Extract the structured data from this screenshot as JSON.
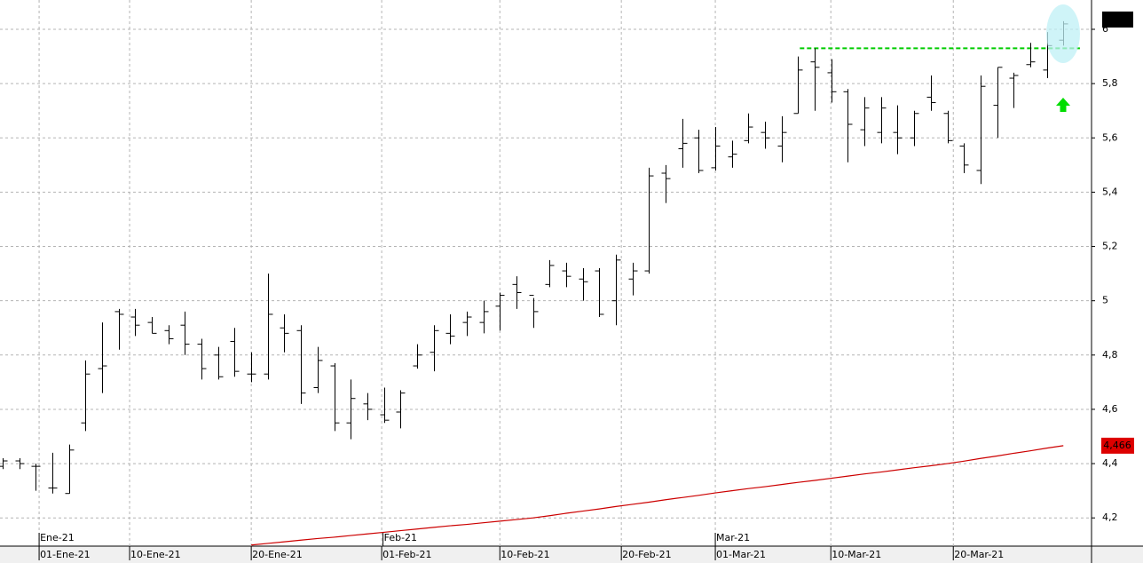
{
  "chart_data": {
    "type": "ohlc",
    "color": "#000000",
    "open": [
      4.39,
      4.41,
      4.39,
      4.31,
      4.29,
      4.55,
      4.75,
      4.96,
      4.94,
      4.92,
      4.89,
      4.91,
      4.84,
      4.8,
      4.85,
      4.73,
      4.73,
      4.9,
      4.89,
      4.68,
      4.76,
      4.55,
      4.62,
      4.58,
      4.59,
      4.76,
      4.81,
      4.88,
      4.92,
      4.92,
      4.98,
      5.06,
      5.02,
      5.06,
      5.11,
      5.08,
      5.11,
      5.0,
      5.08,
      5.11,
      5.47,
      5.56,
      5.6,
      5.49,
      5.53,
      5.59,
      5.62,
      5.57,
      5.69,
      5.88,
      5.84,
      5.77,
      5.63,
      5.62,
      5.62,
      5.6,
      5.75,
      5.69,
      5.57,
      5.48,
      5.72,
      5.82,
      5.87,
      5.85,
      5.96
    ],
    "high": [
      4.42,
      4.42,
      4.4,
      4.44,
      4.47,
      4.78,
      4.92,
      4.97,
      4.97,
      4.94,
      4.91,
      4.96,
      4.86,
      4.83,
      4.9,
      4.81,
      5.1,
      4.95,
      4.91,
      4.83,
      4.77,
      4.71,
      4.66,
      4.68,
      4.67,
      4.84,
      4.91,
      4.95,
      4.96,
      5.0,
      5.03,
      5.09,
      5.01,
      5.15,
      5.14,
      5.12,
      5.12,
      5.17,
      5.14,
      5.49,
      5.5,
      5.67,
      5.63,
      5.64,
      5.59,
      5.69,
      5.66,
      5.68,
      5.9,
      5.93,
      5.89,
      5.78,
      5.75,
      5.75,
      5.72,
      5.7,
      5.83,
      5.7,
      5.58,
      5.83,
      5.86,
      5.84,
      5.95,
      5.99,
      6.03
    ],
    "low": [
      4.38,
      4.38,
      4.3,
      4.29,
      4.29,
      4.52,
      4.66,
      4.82,
      4.87,
      4.88,
      4.84,
      4.8,
      4.71,
      4.71,
      4.72,
      4.7,
      4.71,
      4.81,
      4.62,
      4.66,
      4.52,
      4.49,
      4.56,
      4.55,
      4.53,
      4.75,
      4.74,
      4.84,
      4.87,
      4.88,
      4.89,
      4.97,
      4.9,
      5.05,
      5.05,
      5.0,
      4.94,
      4.91,
      5.02,
      5.1,
      5.36,
      5.49,
      5.47,
      5.48,
      5.49,
      5.58,
      5.56,
      5.51,
      5.69,
      5.7,
      5.73,
      5.51,
      5.57,
      5.58,
      5.54,
      5.57,
      5.7,
      5.58,
      5.47,
      5.43,
      5.6,
      5.71,
      5.86,
      5.82,
      5.94
    ],
    "close": [
      4.41,
      4.4,
      4.39,
      4.31,
      4.45,
      4.73,
      4.76,
      4.95,
      4.91,
      4.88,
      4.86,
      4.84,
      4.75,
      4.72,
      4.74,
      4.73,
      4.95,
      4.88,
      4.66,
      4.78,
      4.55,
      4.64,
      4.6,
      4.56,
      4.66,
      4.8,
      4.89,
      4.87,
      4.94,
      4.96,
      5.02,
      5.03,
      4.96,
      5.13,
      5.09,
      5.07,
      4.95,
      5.15,
      5.11,
      5.46,
      5.45,
      5.58,
      5.48,
      5.57,
      5.54,
      5.64,
      5.6,
      5.62,
      5.85,
      5.86,
      5.77,
      5.65,
      5.71,
      5.71,
      5.6,
      5.69,
      5.73,
      5.59,
      5.5,
      5.79,
      5.86,
      5.83,
      5.88,
      5.94,
      6.02
    ],
    "moving_average": {
      "color": "#cc0000",
      "values": [
        null,
        null,
        null,
        null,
        null,
        null,
        null,
        null,
        null,
        null,
        null,
        null,
        null,
        null,
        null,
        4.1,
        4.106,
        4.112,
        4.118,
        4.124,
        4.129,
        4.135,
        4.141,
        4.147,
        4.153,
        4.159,
        4.165,
        4.171,
        4.176,
        4.182,
        4.188,
        4.194,
        4.2,
        4.208,
        4.217,
        4.225,
        4.233,
        4.242,
        4.25,
        4.258,
        4.267,
        4.275,
        4.283,
        4.292,
        4.3,
        4.308,
        4.315,
        4.323,
        4.331,
        4.338,
        4.346,
        4.354,
        4.362,
        4.369,
        4.377,
        4.385,
        4.392,
        4.4,
        4.409,
        4.419,
        4.428,
        4.438,
        4.447,
        4.457,
        4.466
      ],
      "last_label": "4,466"
    },
    "resistance": {
      "value": 5.93,
      "color": "#00cc00",
      "x": [
        48.1,
        65
      ]
    },
    "ylim": [
      4.096,
      6.108
    ],
    "yticks": [
      {
        "value": 4.2,
        "label": "4,2"
      },
      {
        "value": 4.4,
        "label": "4,4"
      },
      {
        "value": 4.6,
        "label": "4,6"
      },
      {
        "value": 4.8,
        "label": "4,8"
      },
      5,
      {
        "value": 5.2,
        "label": "5,2"
      },
      {
        "value": 5.4,
        "label": "5,4"
      },
      {
        "value": 5.6,
        "label": "5,6"
      },
      {
        "value": 5.8,
        "label": "5,8"
      },
      6
    ],
    "xlim": [
      -0.16,
      65.7
    ],
    "xticks": [
      {
        "value": 2.2,
        "label": "01-Ene-21"
      },
      {
        "value": 7.66,
        "label": "10-Ene-21"
      },
      {
        "value": 15.0,
        "label": "20-Ene-21"
      },
      {
        "value": 22.87,
        "label": "01-Feb-21"
      },
      {
        "value": 30.0,
        "label": "10-Feb-21"
      },
      {
        "value": 37.33,
        "label": "20-Feb-21"
      },
      {
        "value": 43.0,
        "label": "01-Mar-21"
      },
      {
        "value": 49.97,
        "label": "10-Mar-21"
      },
      {
        "value": 57.36,
        "label": "20-Mar-21"
      }
    ],
    "month_ticks": [
      {
        "value": 2.2,
        "label": "Ene-21"
      },
      {
        "value": 22.95,
        "label": "Feb-21"
      },
      {
        "value": 43.0,
        "label": "Mar-21"
      }
    ],
    "grid": true
  }
}
